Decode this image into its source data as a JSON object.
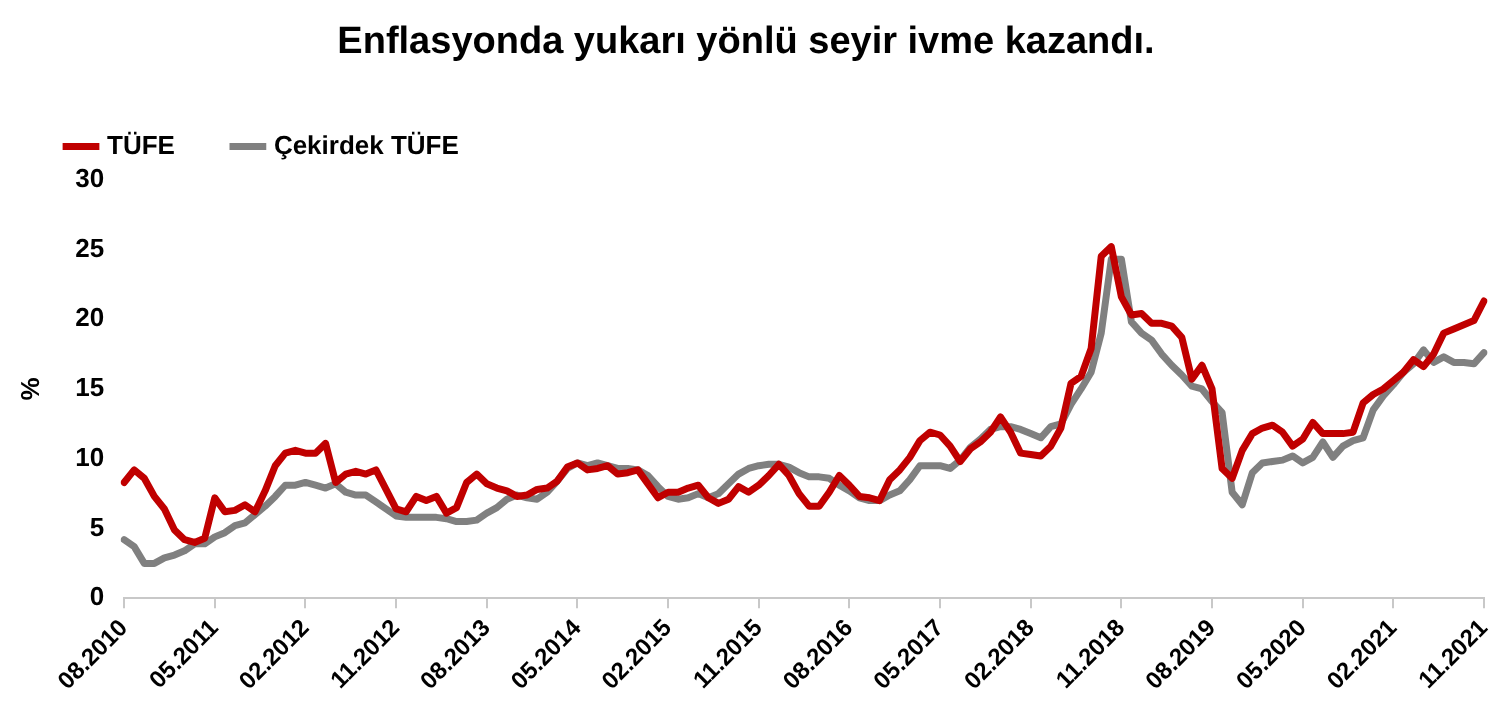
{
  "chart_data": {
    "type": "line",
    "title": "Enflasyonda yukarı yönlü seyir ivme kazandı.",
    "ylabel": "%",
    "categories": [
      "08.2010",
      null,
      null,
      null,
      null,
      null,
      null,
      null,
      null,
      "05.2011",
      null,
      null,
      null,
      null,
      null,
      null,
      null,
      null,
      "02.2012",
      null,
      null,
      null,
      null,
      null,
      null,
      null,
      null,
      "11.2012",
      null,
      null,
      null,
      null,
      null,
      null,
      null,
      null,
      "08.2013",
      null,
      null,
      null,
      null,
      null,
      null,
      null,
      null,
      "05.2014",
      null,
      null,
      null,
      null,
      null,
      null,
      null,
      null,
      "02.2015",
      null,
      null,
      null,
      null,
      null,
      null,
      null,
      null,
      "11.2015",
      null,
      null,
      null,
      null,
      null,
      null,
      null,
      null,
      "08.2016",
      null,
      null,
      null,
      null,
      null,
      null,
      null,
      null,
      "05.2017",
      null,
      null,
      null,
      null,
      null,
      null,
      null,
      null,
      "02.2018",
      null,
      null,
      null,
      null,
      null,
      null,
      null,
      null,
      "11.2018",
      null,
      null,
      null,
      null,
      null,
      null,
      null,
      null,
      "08.2019",
      null,
      null,
      null,
      null,
      null,
      null,
      null,
      null,
      "05.2020",
      null,
      null,
      null,
      null,
      null,
      null,
      null,
      null,
      "02.2021",
      null,
      null,
      null,
      null,
      null,
      null,
      null,
      null,
      "11.2021"
    ],
    "series": [
      {
        "name": "TÜFE",
        "color": "#c00000",
        "values": [
          8.3,
          9.2,
          8.6,
          7.3,
          6.4,
          4.9,
          4.2,
          4.0,
          4.3,
          7.2,
          6.2,
          6.3,
          6.7,
          6.2,
          7.7,
          9.5,
          10.4,
          10.6,
          10.4,
          10.4,
          11.1,
          8.3,
          8.9,
          9.1,
          8.9,
          9.2,
          7.8,
          6.4,
          6.2,
          7.3,
          7.0,
          7.3,
          6.1,
          6.5,
          8.3,
          8.9,
          8.2,
          7.9,
          7.7,
          7.3,
          7.4,
          7.8,
          7.9,
          8.4,
          9.4,
          9.7,
          9.2,
          9.3,
          9.5,
          8.9,
          9.0,
          9.2,
          8.2,
          7.2,
          7.6,
          7.6,
          7.9,
          8.1,
          7.2,
          6.8,
          7.1,
          8.0,
          7.6,
          8.1,
          8.8,
          9.6,
          8.8,
          7.5,
          6.6,
          6.6,
          7.6,
          8.8,
          8.1,
          7.3,
          7.2,
          7.0,
          8.5,
          9.2,
          10.1,
          11.3,
          11.9,
          11.7,
          10.9,
          9.8,
          10.7,
          11.2,
          11.9,
          13.0,
          11.9,
          10.4,
          10.3,
          10.2,
          10.9,
          12.2,
          15.4,
          15.9,
          17.9,
          24.5,
          25.2,
          21.6,
          20.3,
          20.4,
          19.7,
          19.7,
          19.5,
          18.7,
          15.7,
          16.7,
          15.0,
          9.3,
          8.6,
          10.6,
          11.8,
          12.2,
          12.4,
          11.9,
          10.9,
          11.4,
          12.6,
          11.8,
          11.8,
          11.8,
          11.9,
          14.0,
          14.6,
          15.0,
          15.6,
          16.2,
          17.1,
          16.6,
          17.5,
          19.0,
          19.3,
          19.6,
          19.9,
          21.3
        ]
      },
      {
        "name": "Çekirdek TÜFE",
        "color": "#808080",
        "values": [
          4.2,
          3.7,
          2.5,
          2.5,
          2.9,
          3.1,
          3.4,
          3.9,
          3.9,
          4.4,
          4.7,
          5.2,
          5.4,
          6.0,
          6.6,
          7.3,
          8.1,
          8.1,
          8.3,
          8.1,
          7.9,
          8.2,
          7.6,
          7.4,
          7.4,
          6.9,
          6.4,
          5.9,
          5.8,
          5.8,
          5.8,
          5.8,
          5.7,
          5.5,
          5.5,
          5.6,
          6.1,
          6.5,
          7.1,
          7.4,
          7.2,
          7.1,
          7.6,
          8.4,
          9.3,
          9.7,
          9.5,
          9.7,
          9.5,
          9.3,
          9.3,
          9.2,
          8.8,
          8.0,
          7.3,
          7.1,
          7.2,
          7.5,
          7.2,
          7.5,
          8.2,
          8.9,
          9.3,
          9.5,
          9.6,
          9.6,
          9.4,
          9.0,
          8.7,
          8.7,
          8.6,
          8.1,
          7.7,
          7.2,
          7.0,
          7.0,
          7.4,
          7.7,
          8.5,
          9.5,
          9.5,
          9.5,
          9.3,
          9.9,
          10.8,
          11.4,
          12.1,
          12.3,
          12.3,
          12.1,
          11.8,
          11.5,
          12.3,
          12.5,
          13.9,
          15.0,
          16.2,
          19.0,
          24.3,
          24.3,
          19.8,
          19.0,
          18.5,
          17.5,
          16.7,
          16.0,
          15.2,
          15.0,
          14.1,
          13.3,
          7.6,
          6.7,
          9.0,
          9.7,
          9.8,
          9.9,
          10.2,
          9.7,
          10.1,
          11.2,
          10.1,
          10.9,
          11.3,
          11.5,
          13.5,
          14.5,
          15.3,
          16.2,
          16.8,
          17.8,
          16.9,
          17.3,
          16.9,
          16.9,
          16.8,
          17.6
        ]
      }
    ],
    "ylim": [
      0,
      30
    ],
    "yticks": [
      0,
      5,
      10,
      15,
      20,
      25,
      30
    ],
    "grid": false,
    "legend": "top left",
    "marker": "none",
    "line_style": "solid"
  }
}
